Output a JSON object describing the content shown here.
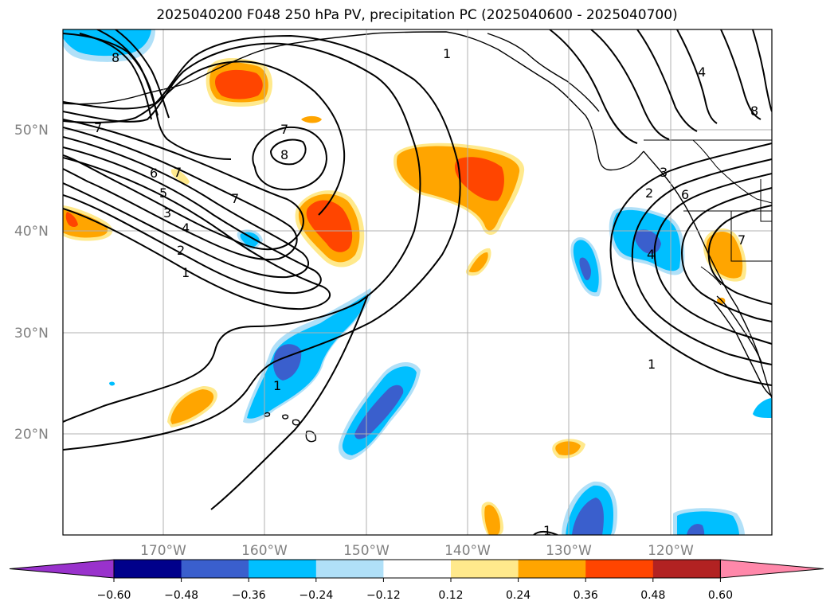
{
  "title": "2025040200 F048 250 hPa PV, precipitation PC (2025040600 - 2025040700)",
  "map": {
    "lon_range": [
      -180,
      -110
    ],
    "lat_range": [
      10,
      60
    ],
    "lat_labels": [
      "20°N",
      "30°N",
      "40°N",
      "50°N"
    ],
    "lat_values": [
      20,
      30,
      40,
      50
    ],
    "lon_labels": [
      "170°W",
      "160°W",
      "150°W",
      "140°W",
      "130°W",
      "120°W"
    ],
    "lon_values": [
      -170,
      -160,
      -150,
      -140,
      -130,
      -120
    ],
    "grid": true
  },
  "pv_contour_labels": [
    "1",
    "2",
    "3",
    "4",
    "5",
    "6",
    "7",
    "8"
  ],
  "colorbar": {
    "ticks": [
      "−0.60",
      "−0.48",
      "−0.36",
      "−0.24",
      "−0.12",
      "0.12",
      "0.24",
      "0.36",
      "0.48",
      "0.60"
    ],
    "colors": [
      "#9932cc",
      "#00008b",
      "#3a5fcd",
      "#00bfff",
      "#b0e0f8",
      "#ffffff",
      "#ffe98c",
      "#ffa500",
      "#ff4500",
      "#b22222",
      "#ff88aa"
    ]
  }
}
